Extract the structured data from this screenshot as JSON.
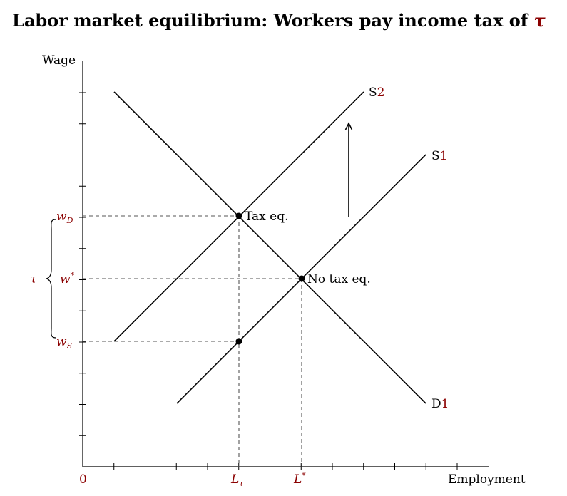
{
  "title": {
    "text": "Labor market equilibrium: Workers pay income tax of",
    "symbol": "τ"
  },
  "axes": {
    "y_label": "Wage",
    "x_label": "Employment",
    "origin": "0"
  },
  "curves": {
    "demand": {
      "letter": "D",
      "subscript": "1"
    },
    "supply1": {
      "letter": "S",
      "subscript": "1"
    },
    "supply2": {
      "letter": "S",
      "subscript": "2"
    }
  },
  "wage_labels": {
    "w_D": {
      "base": "w",
      "sub": "D"
    },
    "w_star": {
      "base": "w",
      "sup": "*"
    },
    "w_S": {
      "base": "w",
      "sub": "S"
    }
  },
  "employment_labels": {
    "L_tau": {
      "base": "L",
      "sub": "τ"
    },
    "L_star": {
      "base": "L",
      "sup": "*"
    }
  },
  "tax_label": "τ",
  "point_labels": {
    "tax_eq": "Tax eq.",
    "no_tax_eq": "No tax eq."
  },
  "colors": {
    "math_red": "#8b0000",
    "line": "#000000",
    "dashed": "#555555"
  }
}
